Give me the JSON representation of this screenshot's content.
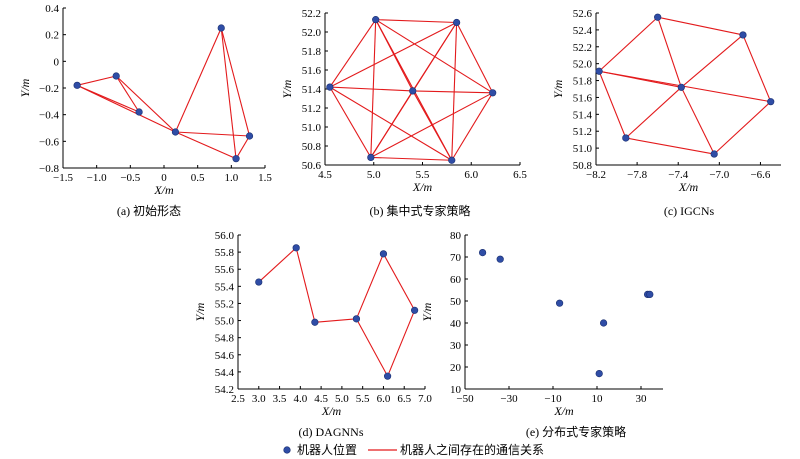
{
  "colors": {
    "node": "#2f4da6",
    "edge": "#e31a1c",
    "axis": "#000000"
  },
  "legend": {
    "node_label": "机器人位置",
    "edge_label": "机器人之间存在的通信关系"
  },
  "chart_data": [
    {
      "type": "scatter",
      "caption": "(a) 初始形态",
      "xlabel": "X/m",
      "ylabel": "Y/m",
      "xlim": [
        -1.5,
        1.5
      ],
      "ylim": [
        -0.8,
        0.4
      ],
      "xticks": [
        -1.5,
        -1.0,
        -0.5,
        0,
        0.5,
        1.0,
        1.5
      ],
      "xtick_labels": [
        "−1.5",
        "−1.0",
        "−0.5",
        "0",
        "0.5",
        "1.0",
        "1.5"
      ],
      "yticks": [
        0.4,
        0.2,
        0,
        -0.2,
        -0.4,
        -0.6,
        -0.8
      ],
      "ytick_labels": [
        "0.4",
        "0.2",
        "0",
        "−0.2",
        "−0.4",
        "−0.6",
        "−0.8"
      ],
      "points": [
        [
          -1.29,
          -0.18
        ],
        [
          -0.71,
          -0.11
        ],
        [
          -0.37,
          -0.38
        ],
        [
          0.17,
          -0.53
        ],
        [
          0.85,
          0.25
        ],
        [
          1.27,
          -0.56
        ],
        [
          1.07,
          -0.73
        ]
      ],
      "edges": [
        [
          0,
          1
        ],
        [
          0,
          2
        ],
        [
          0,
          3
        ],
        [
          1,
          2
        ],
        [
          1,
          3
        ],
        [
          3,
          4
        ],
        [
          4,
          5
        ],
        [
          4,
          6
        ],
        [
          3,
          5
        ],
        [
          5,
          6
        ],
        [
          3,
          6
        ]
      ]
    },
    {
      "type": "scatter",
      "caption": "(b) 集中式专家策略",
      "xlabel": "X/m",
      "ylabel": "Y/m",
      "xlim": [
        4.5,
        6.5
      ],
      "ylim": [
        50.6,
        52.2
      ],
      "xticks": [
        4.5,
        5.0,
        5.5,
        6.0,
        6.5
      ],
      "xtick_labels": [
        "4.5",
        "5.0",
        "5.5",
        "6.0",
        "6.5"
      ],
      "yticks": [
        52.2,
        52.0,
        51.8,
        51.6,
        51.4,
        51.2,
        51.0,
        50.8,
        50.6
      ],
      "ytick_labels": [
        "52.2",
        "52.0",
        "51.8",
        "51.6",
        "51.4",
        "51.2",
        "51.0",
        "50.8",
        "50.6"
      ],
      "points": [
        [
          5.02,
          52.13
        ],
        [
          5.85,
          52.1
        ],
        [
          4.55,
          51.42
        ],
        [
          5.4,
          51.38
        ],
        [
          6.22,
          51.36
        ],
        [
          4.97,
          50.68
        ],
        [
          5.8,
          50.65
        ]
      ],
      "edges": [
        [
          0,
          1
        ],
        [
          0,
          2
        ],
        [
          0,
          3
        ],
        [
          0,
          4
        ],
        [
          0,
          5
        ],
        [
          0,
          6
        ],
        [
          1,
          2
        ],
        [
          1,
          3
        ],
        [
          1,
          4
        ],
        [
          1,
          5
        ],
        [
          1,
          6
        ],
        [
          2,
          3
        ],
        [
          2,
          5
        ],
        [
          2,
          6
        ],
        [
          3,
          4
        ],
        [
          3,
          5
        ],
        [
          3,
          6
        ],
        [
          4,
          5
        ],
        [
          4,
          6
        ],
        [
          5,
          6
        ]
      ]
    },
    {
      "type": "scatter",
      "caption": "(c) IGCNs",
      "xlabel": "X/m",
      "ylabel": "Y/m",
      "xlim": [
        -8.2,
        -6.4
      ],
      "ylim": [
        50.8,
        52.6
      ],
      "xticks": [
        -8.2,
        -7.8,
        -7.4,
        -7.0,
        -6.6
      ],
      "xtick_labels": [
        "−8.2",
        "−7.8",
        "−7.4",
        "−7.0",
        "−6.6"
      ],
      "yticks": [
        52.6,
        52.4,
        52.2,
        52.0,
        51.8,
        51.6,
        51.4,
        51.2,
        51.0,
        50.8
      ],
      "ytick_labels": [
        "52.6",
        "52.4",
        "52.2",
        "52.0",
        "51.8",
        "51.6",
        "51.4",
        "51.2",
        "51.0",
        "50.8"
      ],
      "points": [
        [
          -7.6,
          52.55
        ],
        [
          -6.77,
          52.34
        ],
        [
          -8.17,
          51.91
        ],
        [
          -7.37,
          51.72
        ],
        [
          -6.5,
          51.55
        ],
        [
          -7.91,
          51.12
        ],
        [
          -7.05,
          50.93
        ]
      ],
      "edges": [
        [
          0,
          1
        ],
        [
          0,
          2
        ],
        [
          0,
          3
        ],
        [
          1,
          3
        ],
        [
          1,
          4
        ],
        [
          2,
          3
        ],
        [
          2,
          4
        ],
        [
          2,
          5
        ],
        [
          3,
          5
        ],
        [
          3,
          6
        ],
        [
          4,
          6
        ],
        [
          5,
          6
        ]
      ]
    },
    {
      "type": "scatter",
      "caption": "(d) DAGNNs",
      "xlabel": "X/m",
      "ylabel": "Y/m",
      "xlim": [
        2.5,
        7.0
      ],
      "ylim": [
        54.2,
        56.0
      ],
      "xticks": [
        2.5,
        3.0,
        3.5,
        4.0,
        4.5,
        5.0,
        5.5,
        6.0,
        6.5,
        7.0
      ],
      "xtick_labels": [
        "2.5",
        "3.0",
        "3.5",
        "4.0",
        "4.5",
        "5.0",
        "5.5",
        "6.0",
        "6.5",
        "7.0"
      ],
      "yticks": [
        56.0,
        55.8,
        55.6,
        55.4,
        55.2,
        55.0,
        54.8,
        54.6,
        54.4,
        54.2
      ],
      "ytick_labels": [
        "56.0",
        "55.8",
        "55.6",
        "55.4",
        "55.2",
        "55.0",
        "54.8",
        "54.6",
        "54.4",
        "54.2"
      ],
      "points": [
        [
          3.0,
          55.45
        ],
        [
          3.9,
          55.85
        ],
        [
          4.35,
          54.98
        ],
        [
          5.35,
          55.02
        ],
        [
          6.0,
          55.78
        ],
        [
          6.75,
          55.12
        ],
        [
          6.1,
          54.35
        ]
      ],
      "edges": [
        [
          0,
          1
        ],
        [
          1,
          2
        ],
        [
          2,
          3
        ],
        [
          3,
          4
        ],
        [
          4,
          5
        ],
        [
          3,
          6
        ],
        [
          5,
          6
        ]
      ]
    },
    {
      "type": "scatter",
      "caption": "(e) 分布式专家策略",
      "xlabel": "X/m",
      "ylabel": "Y/m",
      "xlim": [
        -50,
        40
      ],
      "ylim": [
        10,
        80
      ],
      "xticks": [
        -50,
        -30,
        -10,
        10,
        30
      ],
      "xtick_labels": [
        "−50",
        "−30",
        "−10",
        "10",
        "30"
      ],
      "yticks": [
        80,
        70,
        60,
        50,
        40,
        30,
        20,
        10
      ],
      "ytick_labels": [
        "80",
        "70",
        "60",
        "50",
        "40",
        "30",
        "20",
        "10"
      ],
      "points": [
        [
          -42,
          72
        ],
        [
          -34,
          69
        ],
        [
          -7,
          49
        ],
        [
          13,
          40
        ],
        [
          11,
          17
        ],
        [
          33,
          53
        ],
        [
          34,
          53
        ]
      ],
      "edges": []
    }
  ]
}
